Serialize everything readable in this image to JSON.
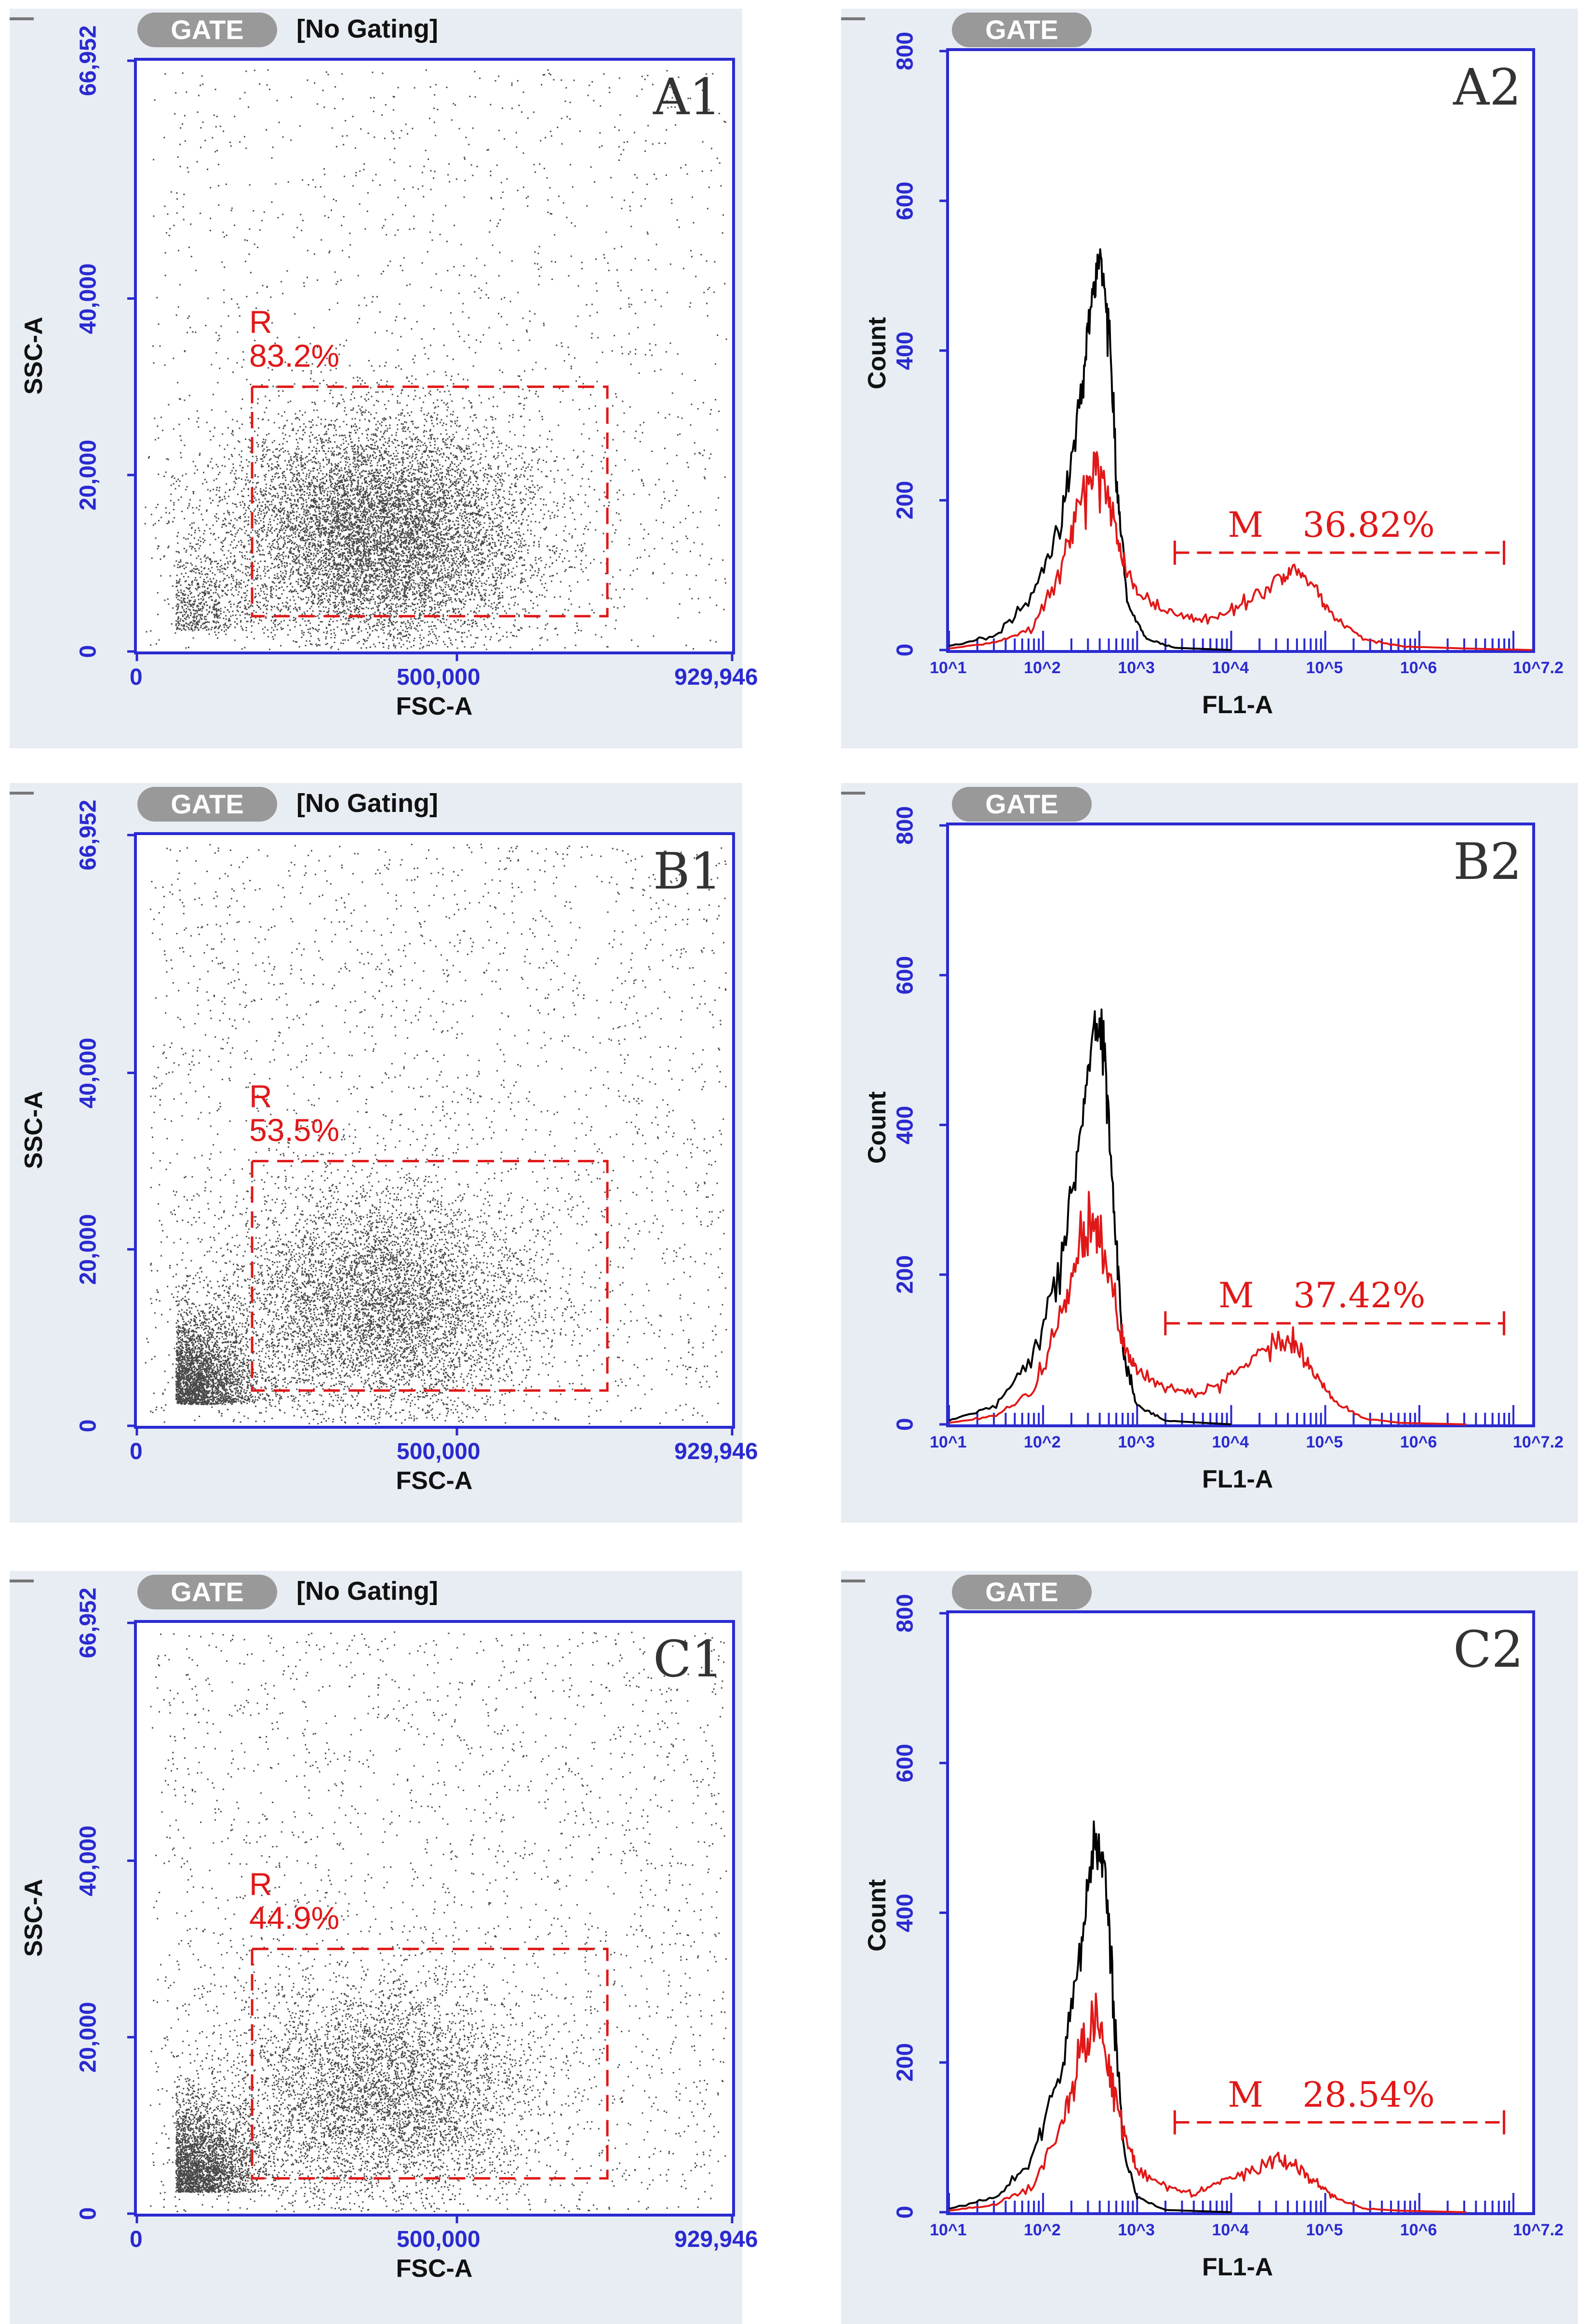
{
  "chart_data": [
    {
      "type": "scatter",
      "panel_label": "A1",
      "gate_button": "GATE",
      "gating": "[No Gating]",
      "xlabel": "FSC-A",
      "ylabel": "SSC-A",
      "xlim": [
        0,
        929946
      ],
      "ylim": [
        0,
        66952
      ],
      "x_ticks": [
        "0",
        "500,000",
        "929,946"
      ],
      "y_ticks": [
        "0",
        "20,000",
        "40,000",
        "66,952"
      ],
      "region": {
        "name": "R",
        "percent": "83.2%",
        "x_range": [
          180000,
          735000
        ],
        "y_range": [
          4000,
          30000
        ]
      },
      "point_color": "#1a1a1a",
      "region_color": "#e01818"
    },
    {
      "type": "line",
      "panel_label": "A2",
      "gate_button": "GATE",
      "xlabel": "FL1-A",
      "ylabel": "Count",
      "xscale": "log",
      "xlim": [
        1,
        7.2
      ],
      "ylim": [
        0,
        800
      ],
      "x_ticks": [
        "10^1",
        "10^2",
        "10^3",
        "10^4",
        "10^5",
        "10^6",
        "10^7.2"
      ],
      "y_ticks": [
        "0",
        "200",
        "400",
        "600",
        "800"
      ],
      "marker": {
        "name": "M",
        "percent": "36.82%",
        "x_range": [
          3.4,
          6.9
        ],
        "y": 130
      },
      "series": [
        {
          "color": "#000000",
          "points": [
            [
              1,
              5
            ],
            [
              1.5,
              20
            ],
            [
              1.9,
              70
            ],
            [
              2.2,
              180
            ],
            [
              2.4,
              330
            ],
            [
              2.5,
              460
            ],
            [
              2.6,
              530
            ],
            [
              2.7,
              430
            ],
            [
              2.8,
              200
            ],
            [
              2.9,
              60
            ],
            [
              3.1,
              15
            ],
            [
              3.4,
              3
            ],
            [
              4,
              0
            ]
          ]
        },
        {
          "color": "#e01818",
          "points": [
            [
              1,
              2
            ],
            [
              1.5,
              10
            ],
            [
              1.9,
              30
            ],
            [
              2.2,
              110
            ],
            [
              2.4,
              200
            ],
            [
              2.55,
              255
            ],
            [
              2.7,
              200
            ],
            [
              2.85,
              120
            ],
            [
              3.0,
              75
            ],
            [
              3.3,
              55
            ],
            [
              3.6,
              40
            ],
            [
              3.9,
              45
            ],
            [
              4.2,
              70
            ],
            [
              4.5,
              95
            ],
            [
              4.7,
              105
            ],
            [
              4.9,
              80
            ],
            [
              5.1,
              45
            ],
            [
              5.4,
              15
            ],
            [
              5.8,
              5
            ],
            [
              6.5,
              2
            ],
            [
              7.2,
              0
            ]
          ]
        }
      ]
    },
    {
      "type": "scatter",
      "panel_label": "B1",
      "gate_button": "GATE",
      "gating": "[No Gating]",
      "xlabel": "FSC-A",
      "ylabel": "SSC-A",
      "xlim": [
        0,
        929946
      ],
      "ylim": [
        0,
        66952
      ],
      "x_ticks": [
        "0",
        "500,000",
        "929,946"
      ],
      "y_ticks": [
        "0",
        "20,000",
        "40,000",
        "66,952"
      ],
      "region": {
        "name": "R",
        "percent": "53.5%",
        "x_range": [
          180000,
          735000
        ],
        "y_range": [
          4000,
          30000
        ]
      },
      "point_color": "#1a1a1a",
      "region_color": "#e01818"
    },
    {
      "type": "line",
      "panel_label": "B2",
      "gate_button": "GATE",
      "xlabel": "FL1-A",
      "ylabel": "Count",
      "xscale": "log",
      "xlim": [
        1,
        7.2
      ],
      "ylim": [
        0,
        800
      ],
      "x_ticks": [
        "10^1",
        "10^2",
        "10^3",
        "10^4",
        "10^5",
        "10^6",
        "10^7.2"
      ],
      "y_ticks": [
        "0",
        "200",
        "400",
        "600",
        "800"
      ],
      "marker": {
        "name": "M",
        "percent": "37.42%",
        "x_range": [
          3.3,
          6.9
        ],
        "y": 135
      },
      "series": [
        {
          "color": "#000000",
          "points": [
            [
              1,
              5
            ],
            [
              1.5,
              25
            ],
            [
              1.9,
              90
            ],
            [
              2.2,
              230
            ],
            [
              2.4,
              400
            ],
            [
              2.55,
              545
            ],
            [
              2.65,
              500
            ],
            [
              2.75,
              300
            ],
            [
              2.85,
              100
            ],
            [
              3.0,
              25
            ],
            [
              3.3,
              5
            ],
            [
              4,
              0
            ]
          ]
        },
        {
          "color": "#e01818",
          "points": [
            [
              1,
              2
            ],
            [
              1.5,
              12
            ],
            [
              1.9,
              45
            ],
            [
              2.2,
              150
            ],
            [
              2.4,
              230
            ],
            [
              2.55,
              270
            ],
            [
              2.7,
              200
            ],
            [
              2.85,
              110
            ],
            [
              3.0,
              70
            ],
            [
              3.3,
              50
            ],
            [
              3.6,
              40
            ],
            [
              3.9,
              55
            ],
            [
              4.2,
              85
            ],
            [
              4.5,
              110
            ],
            [
              4.7,
              100
            ],
            [
              4.9,
              65
            ],
            [
              5.1,
              30
            ],
            [
              5.4,
              8
            ],
            [
              5.8,
              2
            ],
            [
              6.5,
              0
            ]
          ]
        }
      ]
    },
    {
      "type": "scatter",
      "panel_label": "C1",
      "gate_button": "GATE",
      "gating": "[No Gating]",
      "xlabel": "FSC-A",
      "ylabel": "SSC-A",
      "xlim": [
        0,
        929946
      ],
      "ylim": [
        0,
        66952
      ],
      "x_ticks": [
        "0",
        "500,000",
        "929,946"
      ],
      "y_ticks": [
        "0",
        "20,000",
        "40,000",
        "66,952"
      ],
      "region": {
        "name": "R",
        "percent": "44.9%",
        "x_range": [
          180000,
          735000
        ],
        "y_range": [
          4000,
          30000
        ]
      },
      "point_color": "#1a1a1a",
      "region_color": "#e01818"
    },
    {
      "type": "line",
      "panel_label": "C2",
      "gate_button": "GATE",
      "xlabel": "FL1-A",
      "ylabel": "Count",
      "xscale": "log",
      "xlim": [
        1,
        7.2
      ],
      "ylim": [
        0,
        800
      ],
      "x_ticks": [
        "10^1",
        "10^2",
        "10^3",
        "10^4",
        "10^5",
        "10^6",
        "10^7.2"
      ],
      "y_ticks": [
        "0",
        "200",
        "400",
        "600",
        "800"
      ],
      "marker": {
        "name": "M",
        "percent": "28.54%",
        "x_range": [
          3.4,
          6.9
        ],
        "y": 120
      },
      "series": [
        {
          "color": "#000000",
          "points": [
            [
              1,
              5
            ],
            [
              1.5,
              20
            ],
            [
              1.9,
              70
            ],
            [
              2.2,
              190
            ],
            [
              2.4,
              360
            ],
            [
              2.55,
              495
            ],
            [
              2.65,
              470
            ],
            [
              2.75,
              280
            ],
            [
              2.85,
              90
            ],
            [
              3.0,
              20
            ],
            [
              3.3,
              3
            ],
            [
              4,
              0
            ]
          ]
        },
        {
          "color": "#e01818",
          "points": [
            [
              1,
              2
            ],
            [
              1.5,
              10
            ],
            [
              1.9,
              35
            ],
            [
              2.2,
              120
            ],
            [
              2.4,
              215
            ],
            [
              2.55,
              255
            ],
            [
              2.7,
              200
            ],
            [
              2.85,
              110
            ],
            [
              3.0,
              55
            ],
            [
              3.3,
              35
            ],
            [
              3.6,
              25
            ],
            [
              3.9,
              40
            ],
            [
              4.2,
              55
            ],
            [
              4.5,
              70
            ],
            [
              4.7,
              60
            ],
            [
              4.9,
              40
            ],
            [
              5.1,
              20
            ],
            [
              5.4,
              5
            ],
            [
              5.8,
              2
            ],
            [
              6.5,
              0
            ]
          ]
        }
      ]
    }
  ]
}
